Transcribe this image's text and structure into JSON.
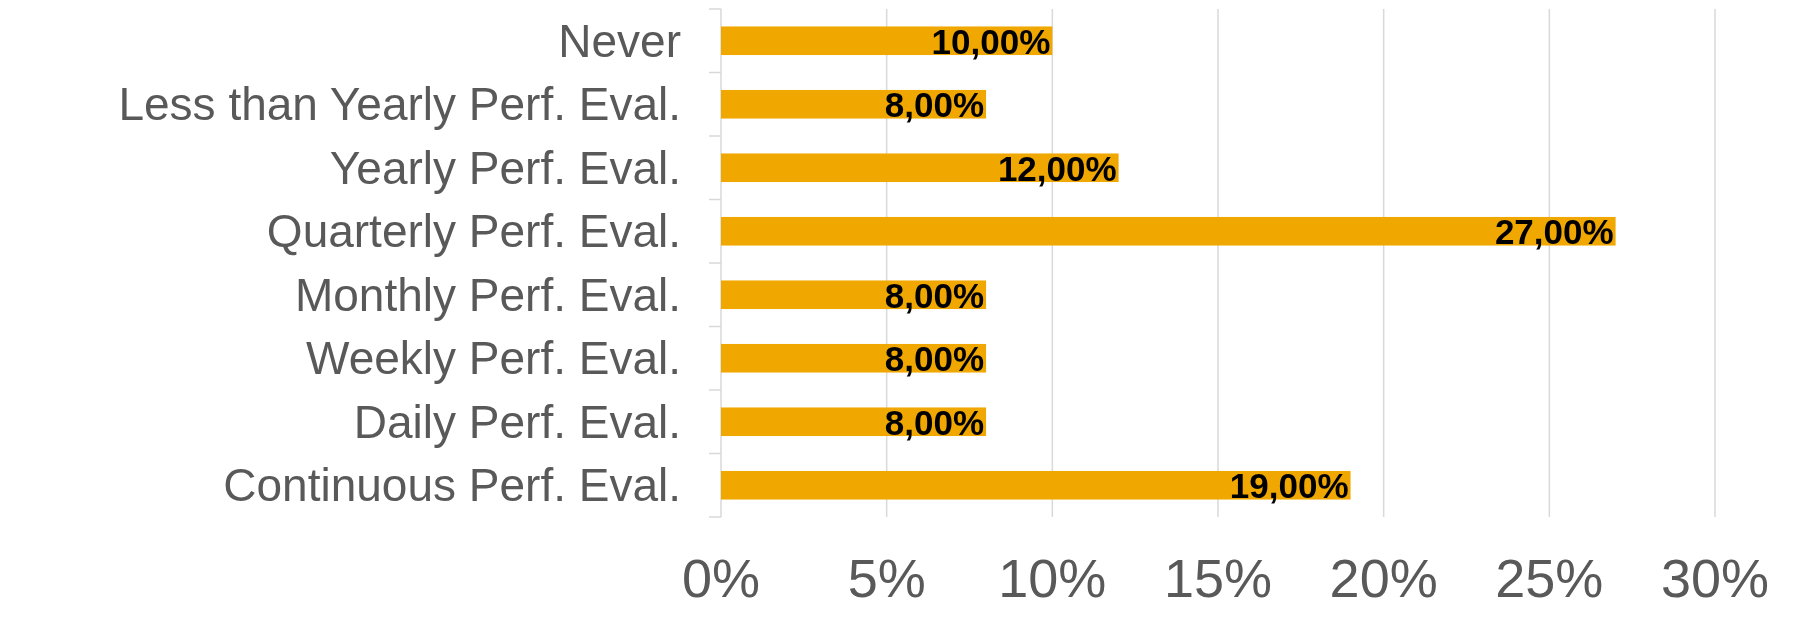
{
  "chart_data": {
    "type": "bar",
    "orientation": "horizontal",
    "categories": [
      "Never",
      "Less than Yearly Perf. Eval.",
      "Yearly Perf. Eval.",
      "Quarterly Perf. Eval.",
      "Monthly Perf. Eval.",
      "Weekly Perf. Eval.",
      "Daily Perf. Eval.",
      "Continuous Perf. Eval."
    ],
    "values": [
      10,
      8,
      12,
      27,
      8,
      8,
      8,
      19
    ],
    "value_labels": [
      "10,00%",
      "8,00%",
      "12,00%",
      "27,00%",
      "8,00%",
      "8,00%",
      "8,00%",
      "19,00%"
    ],
    "color": "#f0a800",
    "xlim": [
      0,
      30
    ],
    "xticks": [
      {
        "value": 0,
        "label": "0%"
      },
      {
        "value": 5,
        "label": "5%"
      },
      {
        "value": 10,
        "label": "10%"
      },
      {
        "value": 15,
        "label": "15%"
      },
      {
        "value": 20,
        "label": "20%"
      },
      {
        "value": 25,
        "label": "25%"
      },
      {
        "value": 30,
        "label": "30%"
      }
    ],
    "grid": "x"
  }
}
